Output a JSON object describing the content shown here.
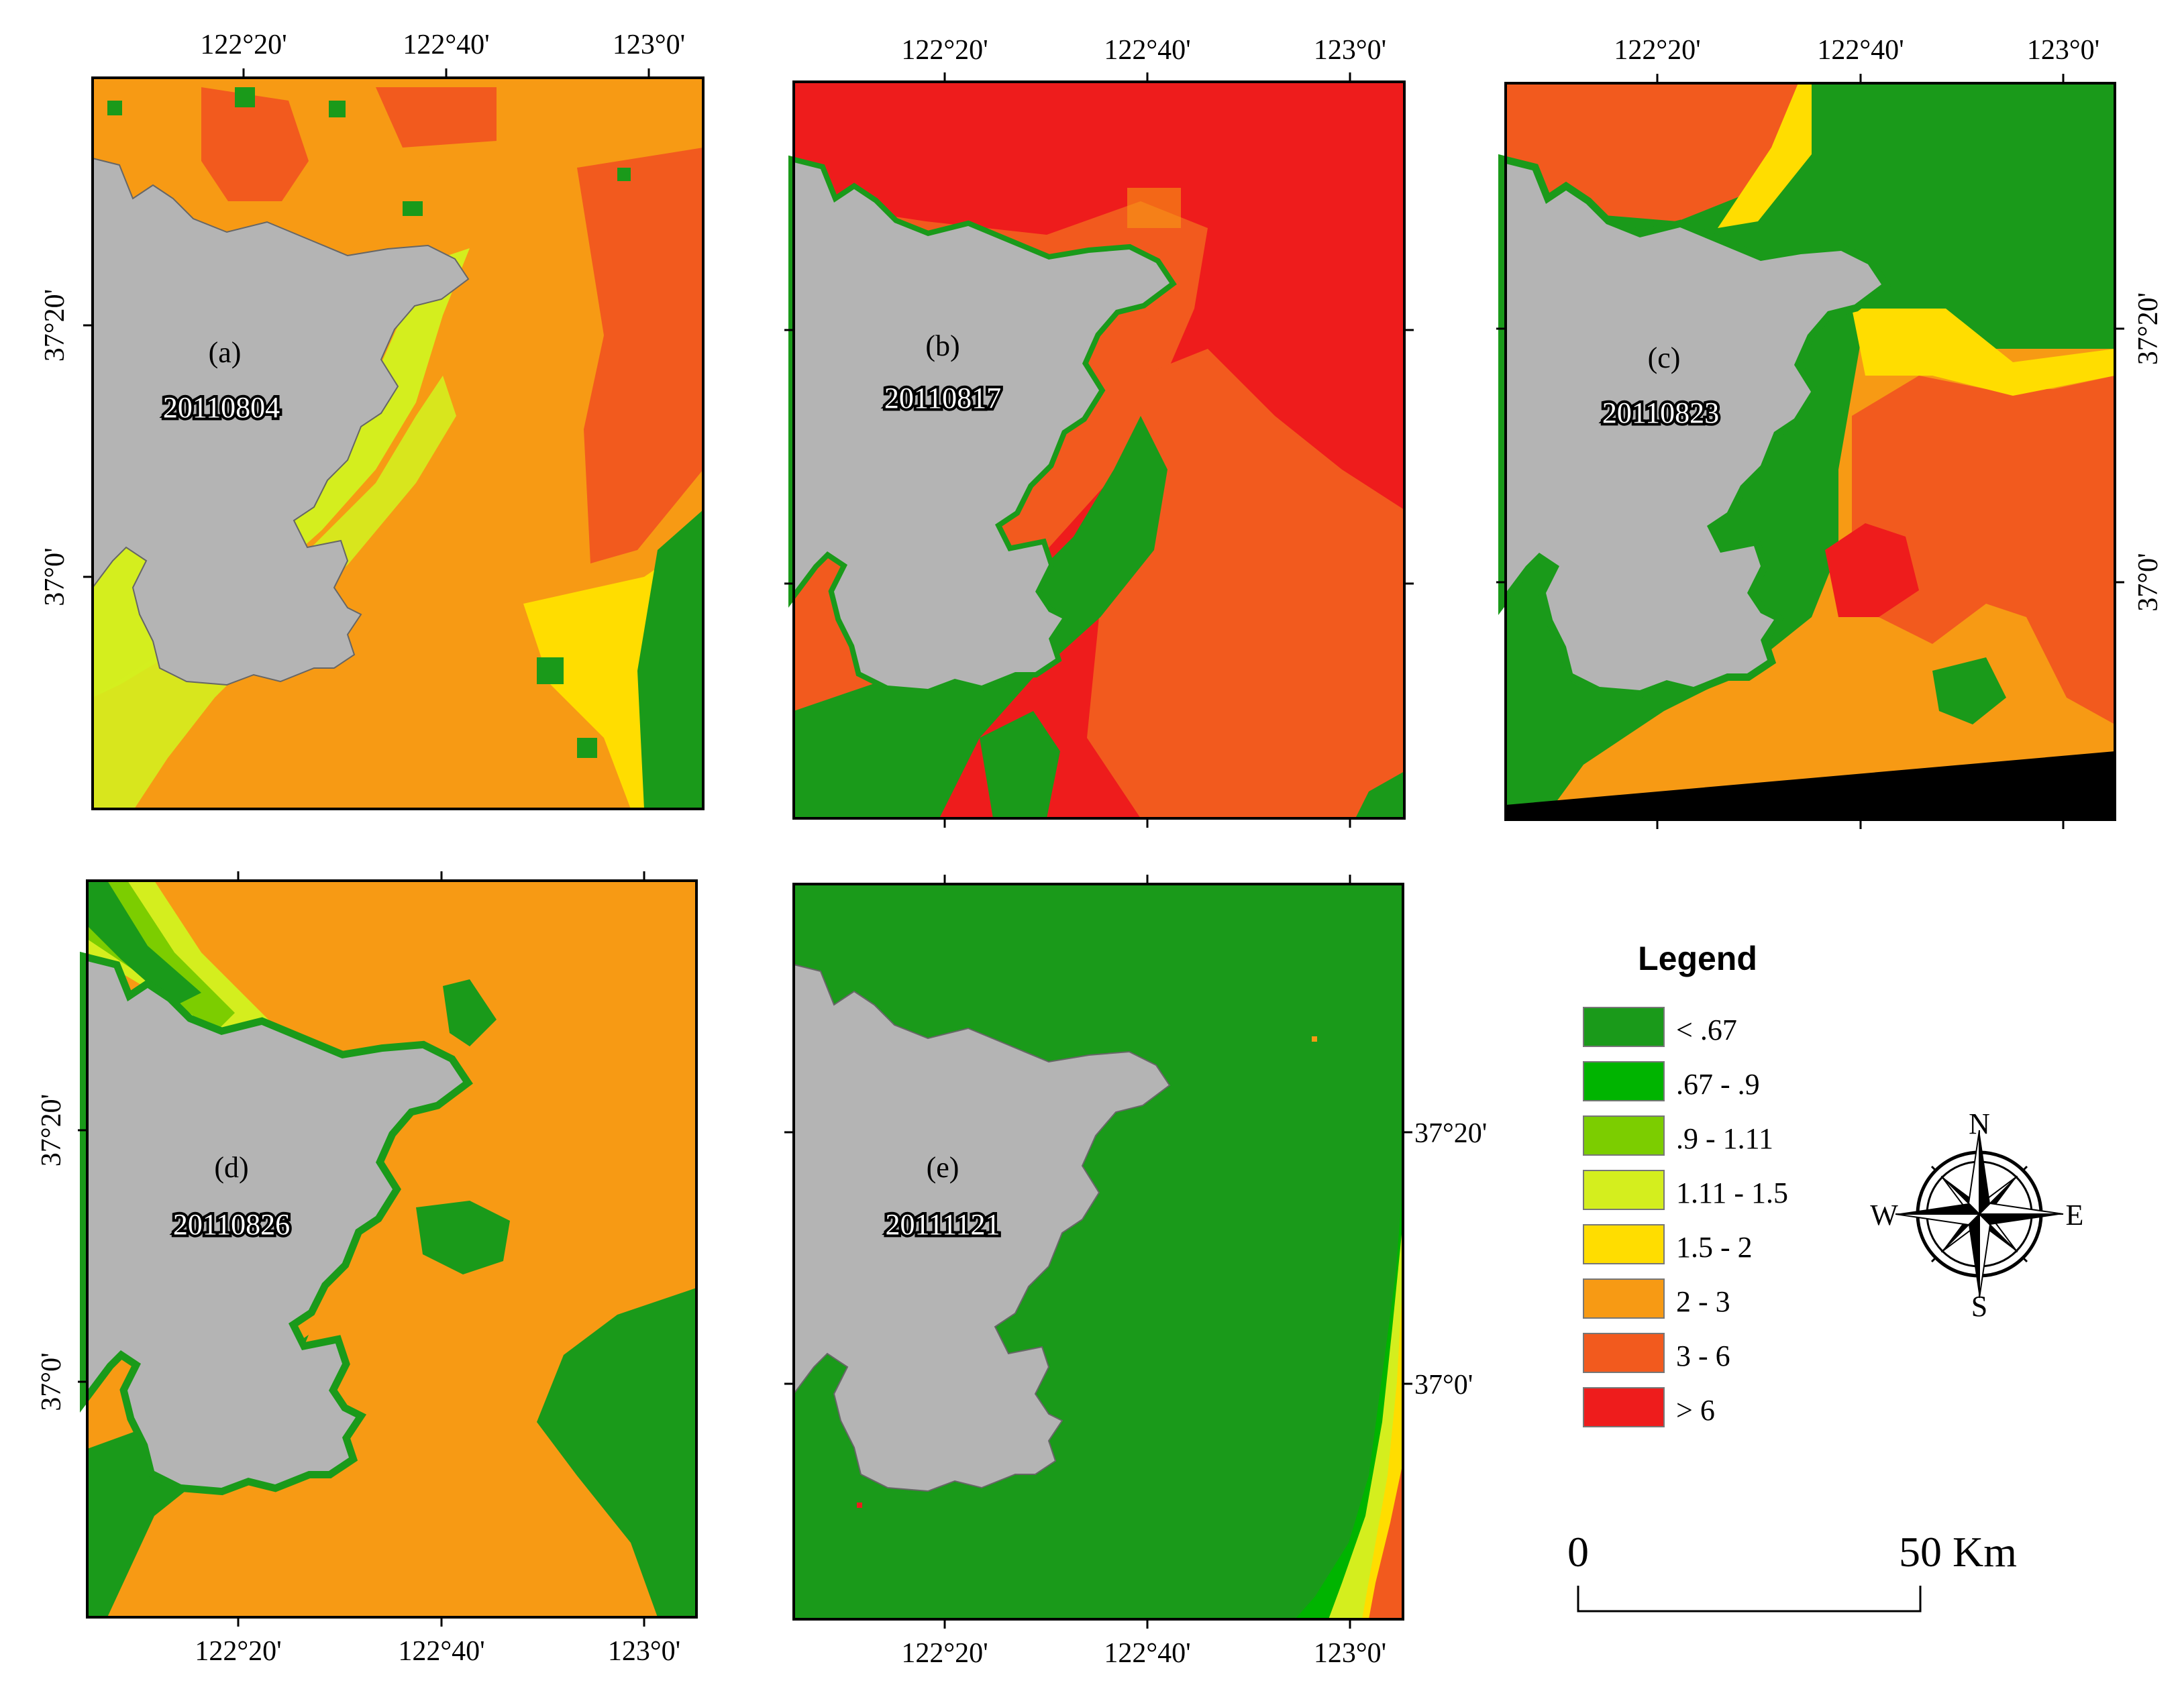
{
  "panels": [
    {
      "id": "a",
      "label": "(a)",
      "date": "20110804",
      "top_ticks": [
        "122°20'",
        "122°40'",
        "123°0'"
      ],
      "bottom_ticks": [],
      "left_ticks": [
        "37°20'",
        "37°0'"
      ],
      "right_ticks": []
    },
    {
      "id": "b",
      "label": "(b)",
      "date": "20110817",
      "top_ticks": [
        "122°20'",
        "122°40'",
        "123°0'"
      ],
      "bottom_ticks": [],
      "left_ticks": [],
      "right_ticks": []
    },
    {
      "id": "c",
      "label": "(c)",
      "date": "20110823",
      "top_ticks": [
        "122°20'",
        "122°40'",
        "123°0'"
      ],
      "bottom_ticks": [],
      "left_ticks": [],
      "right_ticks": [
        "37°20'",
        "37°0'"
      ]
    },
    {
      "id": "d",
      "label": "(d)",
      "date": "20110826",
      "top_ticks": [],
      "bottom_ticks": [
        "122°20'",
        "122°40'",
        "123°0'"
      ],
      "left_ticks": [
        "37°20'",
        "37°0'"
      ],
      "right_ticks": []
    },
    {
      "id": "e",
      "label": "(e)",
      "date": "20111121",
      "top_ticks": [],
      "bottom_ticks": [
        "122°20'",
        "122°40'",
        "123°0'"
      ],
      "left_ticks": [],
      "right_ticks": [
        "37°20'",
        "37°0'"
      ]
    }
  ],
  "legend": {
    "title": "Legend",
    "classes": [
      {
        "label": "< .67",
        "color": "#1a9a1a"
      },
      {
        "label": ".67 - .9",
        "color": "#00b400"
      },
      {
        "label": ".9 - 1.11",
        "color": "#7ccd00"
      },
      {
        "label": "1.11 - 1.5",
        "color": "#d4ee1e"
      },
      {
        "label": "1.5 - 2",
        "color": "#ffdd00"
      },
      {
        "label": "2 - 3",
        "color": "#f79a14"
      },
      {
        "label": "3 - 6",
        "color": "#f25a1e"
      },
      {
        "label": "> 6",
        "color": "#ee1c1c"
      }
    ]
  },
  "compass": {
    "n": "N",
    "s": "S",
    "e": "E",
    "w": "W"
  },
  "scale_bar": {
    "start_label": "0",
    "end_label": "50 Km"
  },
  "colors": {
    "land": "#b4b4b4",
    "no_data": "#000000"
  }
}
